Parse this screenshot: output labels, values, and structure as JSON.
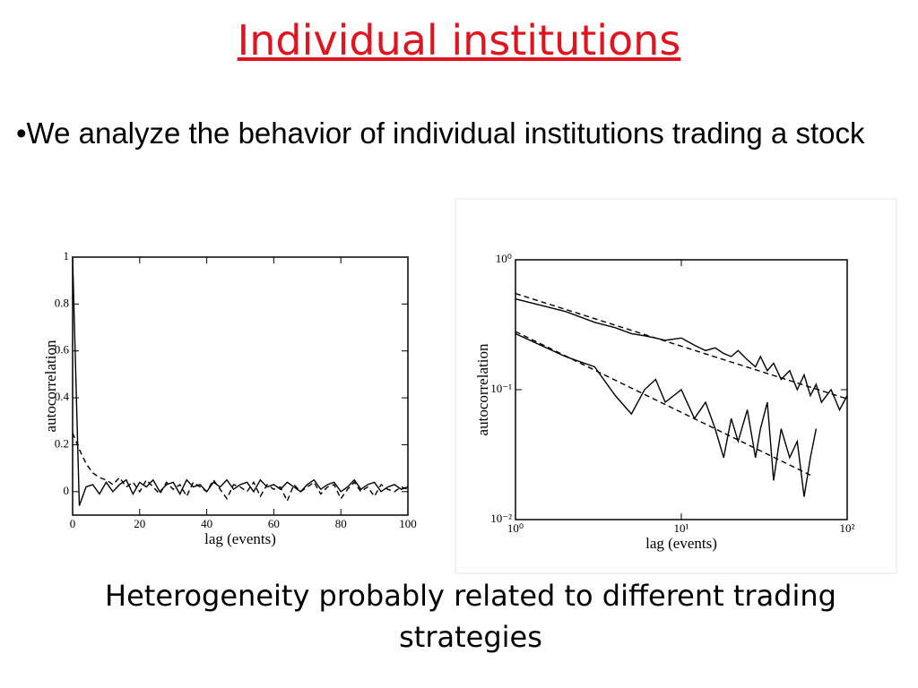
{
  "title": "Individual institutions",
  "bullet": "•We analyze the behavior of individual institutions trading a stock",
  "caption": "Heterogeneity probably related to different trading strategies",
  "chart_data": [
    {
      "type": "line",
      "xlabel": "lag (events)",
      "ylabel": "autocorrelation",
      "xlim": [
        0,
        100
      ],
      "ylim": [
        -0.1,
        1
      ],
      "xticks": [
        0,
        20,
        40,
        60,
        80,
        100
      ],
      "yticks": [
        0,
        0.2,
        0.4,
        0.6,
        0.8,
        1
      ],
      "x": [
        0,
        2,
        4,
        6,
        8,
        10,
        12,
        14,
        16,
        18,
        20,
        22,
        24,
        26,
        28,
        30,
        32,
        34,
        36,
        38,
        40,
        42,
        44,
        46,
        48,
        50,
        52,
        54,
        56,
        58,
        60,
        62,
        64,
        66,
        68,
        70,
        72,
        74,
        76,
        78,
        80,
        82,
        84,
        86,
        88,
        90,
        92,
        94,
        96,
        98,
        100
      ],
      "series": [
        {
          "color": "#000000",
          "dash": "solid",
          "values": [
            1,
            -0.06,
            0.02,
            0.03,
            -0.01,
            0.04,
            0,
            0.03,
            0.05,
            -0.01,
            0.04,
            0.02,
            0.05,
            0,
            0.03,
            0.04,
            -0.01,
            0.05,
            0.02,
            0.03,
            0,
            0.04,
            0.02,
            0.05,
            0.01,
            0.03,
            0.04,
            0,
            0.05,
            0.02,
            0.03,
            0.01,
            0.04,
            0.02,
            0,
            0.03,
            0.05,
            0.01,
            0.03,
            0.04,
            0,
            0.02,
            0.05,
            0.01,
            0.03,
            0.04,
            0,
            0.02,
            0.03,
            0.01,
            0.02
          ]
        },
        {
          "color": "#000000",
          "dash": "dashed",
          "values": [
            0.25,
            0.18,
            0.12,
            0.08,
            0.06,
            0.05,
            0.03,
            0.06,
            0.02,
            0.04,
            0,
            0.05,
            0.02,
            -0.01,
            0.04,
            0.01,
            0.03,
            -0.02,
            0.04,
            0.02,
            0,
            0.05,
            0.01,
            -0.03,
            0.03,
            0.02,
            0,
            0.04,
            -0.02,
            0.03,
            0.01,
            0.02,
            -0.04,
            0.03,
            0,
            0.02,
            0.04,
            -0.01,
            0.02,
            0.03,
            -0.03,
            0.01,
            0.04,
            0,
            0.02,
            -0.02,
            0.03,
            0.01,
            0,
            0.02,
            0.01
          ]
        }
      ]
    },
    {
      "type": "line",
      "xlabel": "lag (events)",
      "ylabel": "autocorrelation",
      "xscale": "log",
      "yscale": "log",
      "xlim": [
        1,
        100
      ],
      "ylim": [
        0.01,
        1
      ],
      "xticks": [
        {
          "value": 1,
          "label": "10⁰"
        },
        {
          "value": 10,
          "label": "10¹"
        },
        {
          "value": 100,
          "label": "10²"
        }
      ],
      "yticks": [
        {
          "value": 0.01,
          "label": "10⁻²"
        },
        {
          "value": 0.1,
          "label": "10⁻¹"
        },
        {
          "value": 1,
          "label": "10⁰"
        }
      ],
      "series": [
        {
          "color": "#000000",
          "dash": "solid",
          "x": [
            1,
            2,
            3,
            4,
            5,
            6,
            7,
            8,
            10,
            12,
            14,
            16,
            18,
            20,
            22,
            25,
            28,
            30,
            33,
            36,
            40,
            45,
            50,
            55,
            60,
            65,
            70,
            80,
            90,
            100
          ],
          "values": [
            0.5,
            0.4,
            0.33,
            0.3,
            0.27,
            0.26,
            0.25,
            0.24,
            0.25,
            0.22,
            0.2,
            0.21,
            0.19,
            0.18,
            0.2,
            0.17,
            0.15,
            0.18,
            0.14,
            0.16,
            0.12,
            0.14,
            0.1,
            0.13,
            0.09,
            0.11,
            0.08,
            0.1,
            0.07,
            0.09
          ]
        },
        {
          "color": "#000000",
          "dash": "dashed",
          "x": [
            1,
            100
          ],
          "values": [
            0.55,
            0.085
          ]
        },
        {
          "color": "#000000",
          "dash": "solid",
          "x": [
            1,
            2,
            3,
            4,
            5,
            6,
            7,
            8,
            10,
            12,
            14,
            16,
            18,
            20,
            22,
            25,
            28,
            30,
            33,
            36,
            40,
            45,
            50,
            55,
            60,
            65
          ],
          "values": [
            0.27,
            0.18,
            0.15,
            0.09,
            0.065,
            0.1,
            0.12,
            0.08,
            0.1,
            0.06,
            0.08,
            0.05,
            0.03,
            0.06,
            0.04,
            0.07,
            0.03,
            0.05,
            0.08,
            0.02,
            0.05,
            0.03,
            0.04,
            0.015,
            0.03,
            0.05
          ]
        },
        {
          "color": "#000000",
          "dash": "dashed",
          "x": [
            1,
            60
          ],
          "values": [
            0.28,
            0.022
          ]
        }
      ]
    }
  ]
}
